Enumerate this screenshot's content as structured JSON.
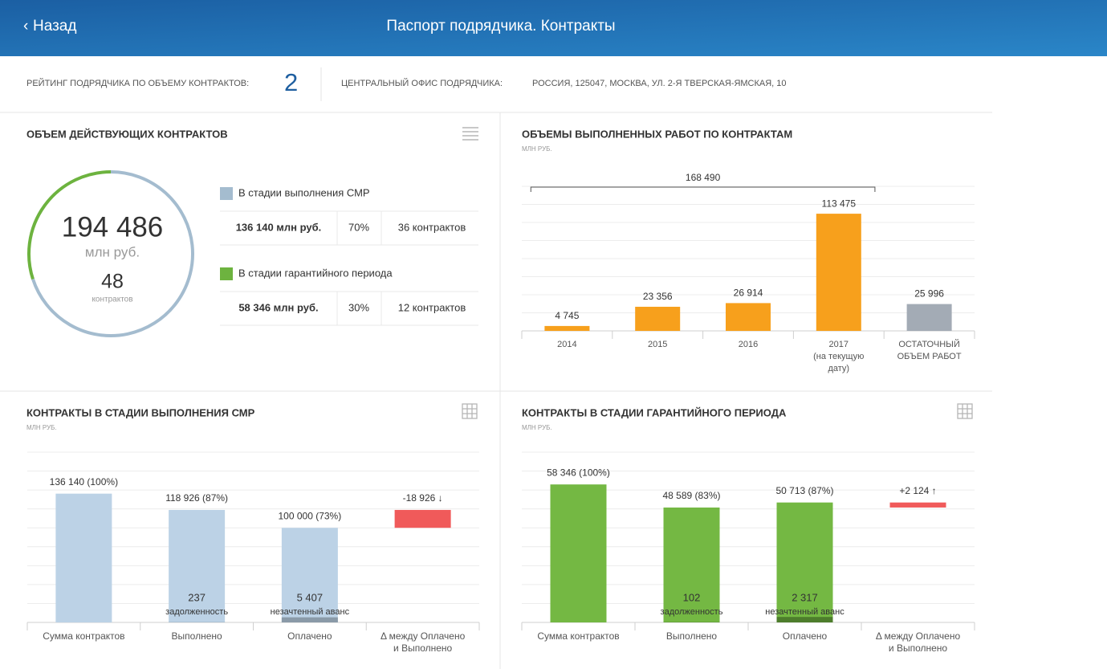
{
  "header": {
    "back": "Назад",
    "title": "Паспорт подрядчика. Контракты"
  },
  "info": {
    "rating_label": "РЕЙТИНГ ПОДРЯДЧИКА ПО ОБЪЕМУ КОНТРАКТОВ:",
    "rating": "2",
    "office_label": "ЦЕНТРАЛЬНЫЙ ОФИС ПОДРЯДЧИКА:",
    "office": "РОССИЯ, 125047, МОСКВА, УЛ. 2-Я ТВЕРСКАЯ-ЯМСКАЯ, 10"
  },
  "summary": {
    "title": "ОБЪЕМ ДЕЙСТВУЮЩИХ КОНТРАКТОВ",
    "total": "194 486",
    "total_unit": "млн руб.",
    "count": "48",
    "count_unit": "контрактов",
    "items": [
      {
        "name": "В стадии выполнения СМР",
        "color": "#a4bccf",
        "amount": "136 140 млн руб.",
        "share": 70,
        "share_label": "70%",
        "contracts": "36 контрактов"
      },
      {
        "name": "В стадии гарантийного периода",
        "color": "#6db33f",
        "amount": "58 346 млн руб.",
        "share": 30,
        "share_label": "30%",
        "contracts": "12 контрактов"
      }
    ]
  },
  "chart_data": [
    {
      "type": "bar",
      "title": "ОБЪЕМЫ ВЫПОЛНЕННЫХ РАБОТ ПО КОНТРАКТАМ",
      "subtitle": "МЛН РУБ.",
      "categories": [
        "2014",
        "2015",
        "2016",
        "2017\n(на текущую\nдату)",
        "ОСТАТОЧНЫЙ\nОБЪЕМ РАБОТ"
      ],
      "values": [
        4745,
        23356,
        26914,
        113475,
        25996
      ],
      "value_labels": [
        "4 745",
        "23 356",
        "26 914",
        "113 475",
        "25 996"
      ],
      "colors": [
        "#f7a01c",
        "#f7a01c",
        "#f7a01c",
        "#f7a01c",
        "#a3abb5"
      ],
      "annotation": "168 490",
      "ylim": [
        0,
        140000
      ],
      "yticks": [
        0,
        17500,
        35000,
        52500,
        70000,
        87500,
        105000,
        122500,
        140000
      ],
      "grid": true
    },
    {
      "type": "waterfall",
      "title": "КОНТРАКТЫ В СТАДИИ ВЫПОЛНЕНИЯ СМР",
      "subtitle": "МЛН РУБ.",
      "categories": [
        "Сумма контрактов",
        "Выполнено",
        "Оплачено",
        "Δ между Оплачено\nи Выполнено"
      ],
      "values": [
        136140,
        118926,
        100000,
        -18926
      ],
      "value_labels": [
        "136 140 (100%)",
        "118 926 (87%)",
        "100 000 (73%)",
        "-18 926 ↓"
      ],
      "sub_values": [
        null,
        237,
        5407,
        null
      ],
      "sub_value_labels": [
        null,
        "237",
        "5 407",
        null
      ],
      "sub_names": [
        null,
        "задолженность",
        "незачтенный аванс",
        null
      ],
      "color": "#bcd2e6",
      "delta_color": "#f05a5a",
      "sub_color": "#8a9aa8",
      "ylim": [
        0,
        180000
      ],
      "yticks": [
        0,
        20000,
        40000,
        60000,
        80000,
        100000,
        120000,
        140000,
        160000,
        180000
      ],
      "grid": true
    },
    {
      "type": "waterfall",
      "title": "КОНТРАКТЫ В СТАДИИ ГАРАНТИЙНОГО ПЕРИОДА",
      "subtitle": "МЛН РУБ.",
      "categories": [
        "Сумма контрактов",
        "Выполнено",
        "Оплачено",
        "Δ между Оплачено\nи Выполнено"
      ],
      "values": [
        58346,
        48589,
        50713,
        2124
      ],
      "value_labels": [
        "58 346 (100%)",
        "48 589 (83%)",
        "50 713 (87%)",
        "+2 124 ↑"
      ],
      "sub_values": [
        null,
        102,
        2317,
        null
      ],
      "sub_value_labels": [
        null,
        "102",
        "2 317",
        null
      ],
      "sub_names": [
        null,
        "задолженность",
        "незачтенный аванс",
        null
      ],
      "color": "#74b843",
      "delta_color": "#f05a5a",
      "sub_color": "#4d7d2c",
      "ylim": [
        0,
        72000
      ],
      "yticks": [
        0,
        8000,
        16000,
        24000,
        32000,
        40000,
        48000,
        56000,
        64000,
        72000
      ],
      "grid": true
    }
  ]
}
